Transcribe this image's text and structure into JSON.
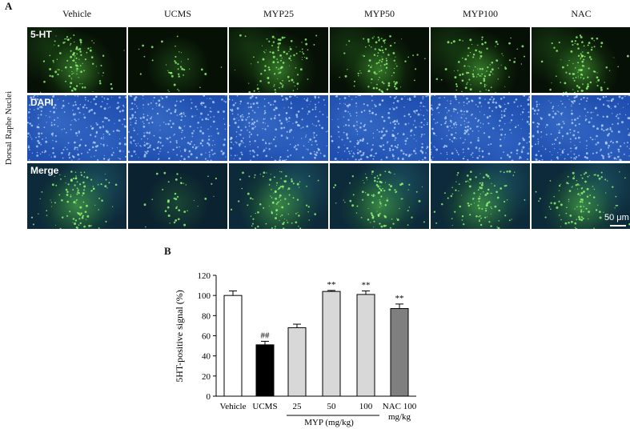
{
  "panel_a": {
    "letter": "A",
    "row_axis_label": "Dorsal Raphe Nuclei",
    "columns": [
      "Vehicle",
      "UCMS",
      "MYP25",
      "MYP50",
      "MYP100",
      "NAC"
    ],
    "rows": [
      "5-HT",
      "DAPI",
      "Merge"
    ],
    "scale_bar": "50 μm"
  },
  "panel_b": {
    "letter": "B",
    "group_label": "MYP (mg/kg)",
    "nac_unit": "mg/kg"
  },
  "chart_data": {
    "type": "bar",
    "ylabel": "5HT-positive signal (%)",
    "ylim": [
      0,
      120
    ],
    "yticks": [
      0,
      20,
      40,
      60,
      80,
      100,
      120
    ],
    "categories": [
      "Vehicle",
      "UCMS",
      "25",
      "50",
      "100",
      "NAC 100"
    ],
    "values": [
      100,
      51,
      68,
      104,
      101,
      87
    ],
    "errors": [
      4.5,
      3.5,
      3.5,
      1.0,
      3.5,
      4.5
    ],
    "annotations": [
      "",
      "##",
      "",
      "**",
      "**",
      "**"
    ],
    "colors": [
      "#ffffff",
      "#000000",
      "#d8d8d8",
      "#d8d8d8",
      "#d8d8d8",
      "#7f7f7f"
    ],
    "grid": false,
    "legend": "none"
  }
}
